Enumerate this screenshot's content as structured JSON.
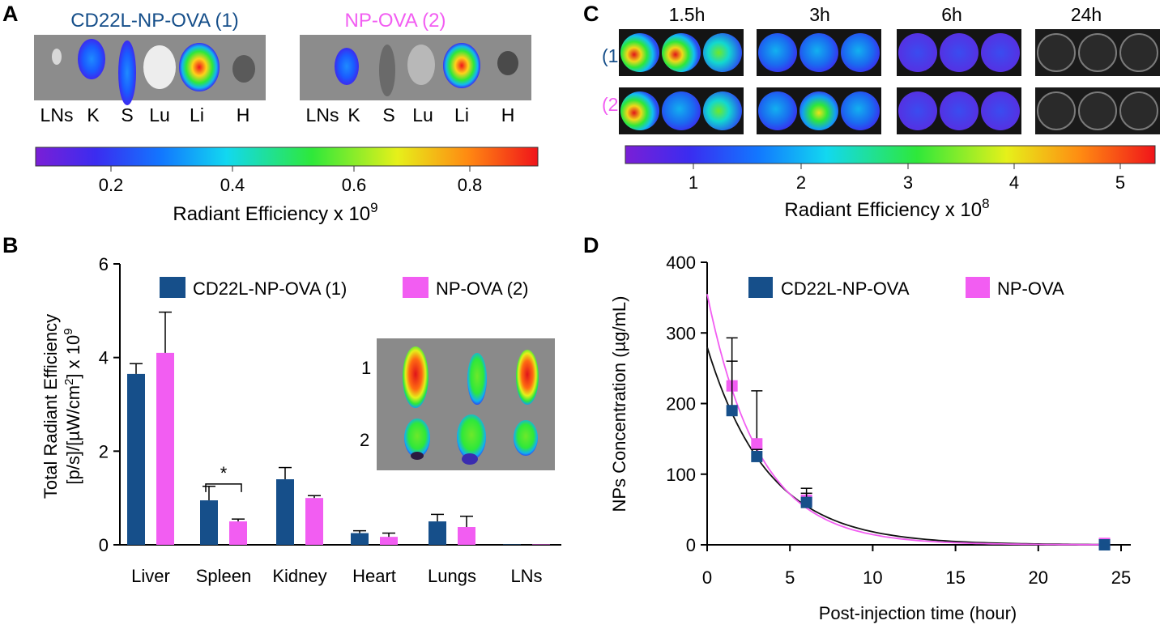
{
  "colors": {
    "np1": "#164f8a",
    "np2": "#f25df2",
    "fit1": "#111111",
    "fit2": "#f25df2",
    "panel_bg": "#8a8a8a"
  },
  "panelA": {
    "label": "A",
    "title1": "CD22L-NP-OVA (1)",
    "title2": "NP-OVA (2)",
    "organs": [
      "LNs",
      "K",
      "S",
      "Lu",
      "Li",
      "H"
    ],
    "colorbar": {
      "ticks": [
        "0.2",
        "0.4",
        "0.6",
        "0.8"
      ],
      "title": "Radiant Efficiency x 10",
      "exp": "9"
    }
  },
  "panelC": {
    "label": "C",
    "times": [
      "1.5h",
      "3h",
      "6h",
      "24h"
    ],
    "rows": [
      "(1)",
      "(2)"
    ],
    "colorbar": {
      "ticks": [
        "1",
        "2",
        "3",
        "4",
        "5"
      ],
      "title": "Radiant Efficiency x 10",
      "exp": "8"
    }
  },
  "panelB": {
    "label": "B",
    "inset_rows": [
      "1",
      "2"
    ],
    "significance": "*",
    "ylabel_line1": "Total Radiant Efficiency",
    "ylabel_line2_a": "[p/s]/[µW/cm",
    "ylabel_line2_sup": "2",
    "ylabel_line2_b": "] x 10",
    "ylabel_line2_exp": "9"
  },
  "panelD": {
    "label": "D",
    "ylabel": "NPs Concentration (µg/mL)",
    "xlabel": "Post-injection time (hour)"
  },
  "chart_data": [
    {
      "type": "bar",
      "panel": "B",
      "categories": [
        "Liver",
        "Spleen",
        "Kidney",
        "Heart",
        "Lungs",
        "LNs"
      ],
      "series": [
        {
          "name": "CD22L-NP-OVA (1)",
          "values": [
            3.65,
            0.95,
            1.4,
            0.25,
            0.5,
            0.01
          ],
          "errors": [
            0.22,
            0.3,
            0.25,
            0.05,
            0.15,
            0.005
          ]
        },
        {
          "name": "NP-OVA (2)",
          "values": [
            4.1,
            0.5,
            1.0,
            0.17,
            0.38,
            0.01
          ],
          "errors": [
            0.87,
            0.05,
            0.05,
            0.08,
            0.23,
            0.005
          ]
        }
      ],
      "xlabel": "",
      "ylabel": "Total Radiant Efficiency [p/s]/[µW/cm²] x 10⁹",
      "ylim": [
        0,
        6
      ],
      "yticks": [
        "0",
        "2",
        "4",
        "6"
      ],
      "legend": "top-right"
    },
    {
      "type": "scatter",
      "panel": "D",
      "series": [
        {
          "name": "CD22L-NP-OVA",
          "x": [
            1.5,
            3,
            6,
            24
          ],
          "y": [
            190,
            125,
            60,
            0
          ],
          "errors": [
            70,
            10,
            20,
            0
          ]
        },
        {
          "name": "NP-OVA",
          "x": [
            1.5,
            3,
            6,
            24
          ],
          "y": [
            225,
            143,
            63,
            2
          ],
          "errors": [
            68,
            75,
            10,
            0
          ]
        }
      ],
      "fits": [
        {
          "series": "CD22L-NP-OVA",
          "y0": 280,
          "k": 0.272
        },
        {
          "series": "NP-OVA",
          "y0": 355,
          "k": 0.32
        }
      ],
      "xlabel": "Post-injection time (hour)",
      "ylabel": "NPs Concentration (µg/mL)",
      "xlim": [
        0,
        25
      ],
      "ylim": [
        0,
        400
      ],
      "xticks": [
        "0",
        "5",
        "10",
        "15",
        "20",
        "25"
      ],
      "yticks": [
        "0",
        "100",
        "200",
        "300",
        "400"
      ],
      "legend": "top"
    }
  ]
}
